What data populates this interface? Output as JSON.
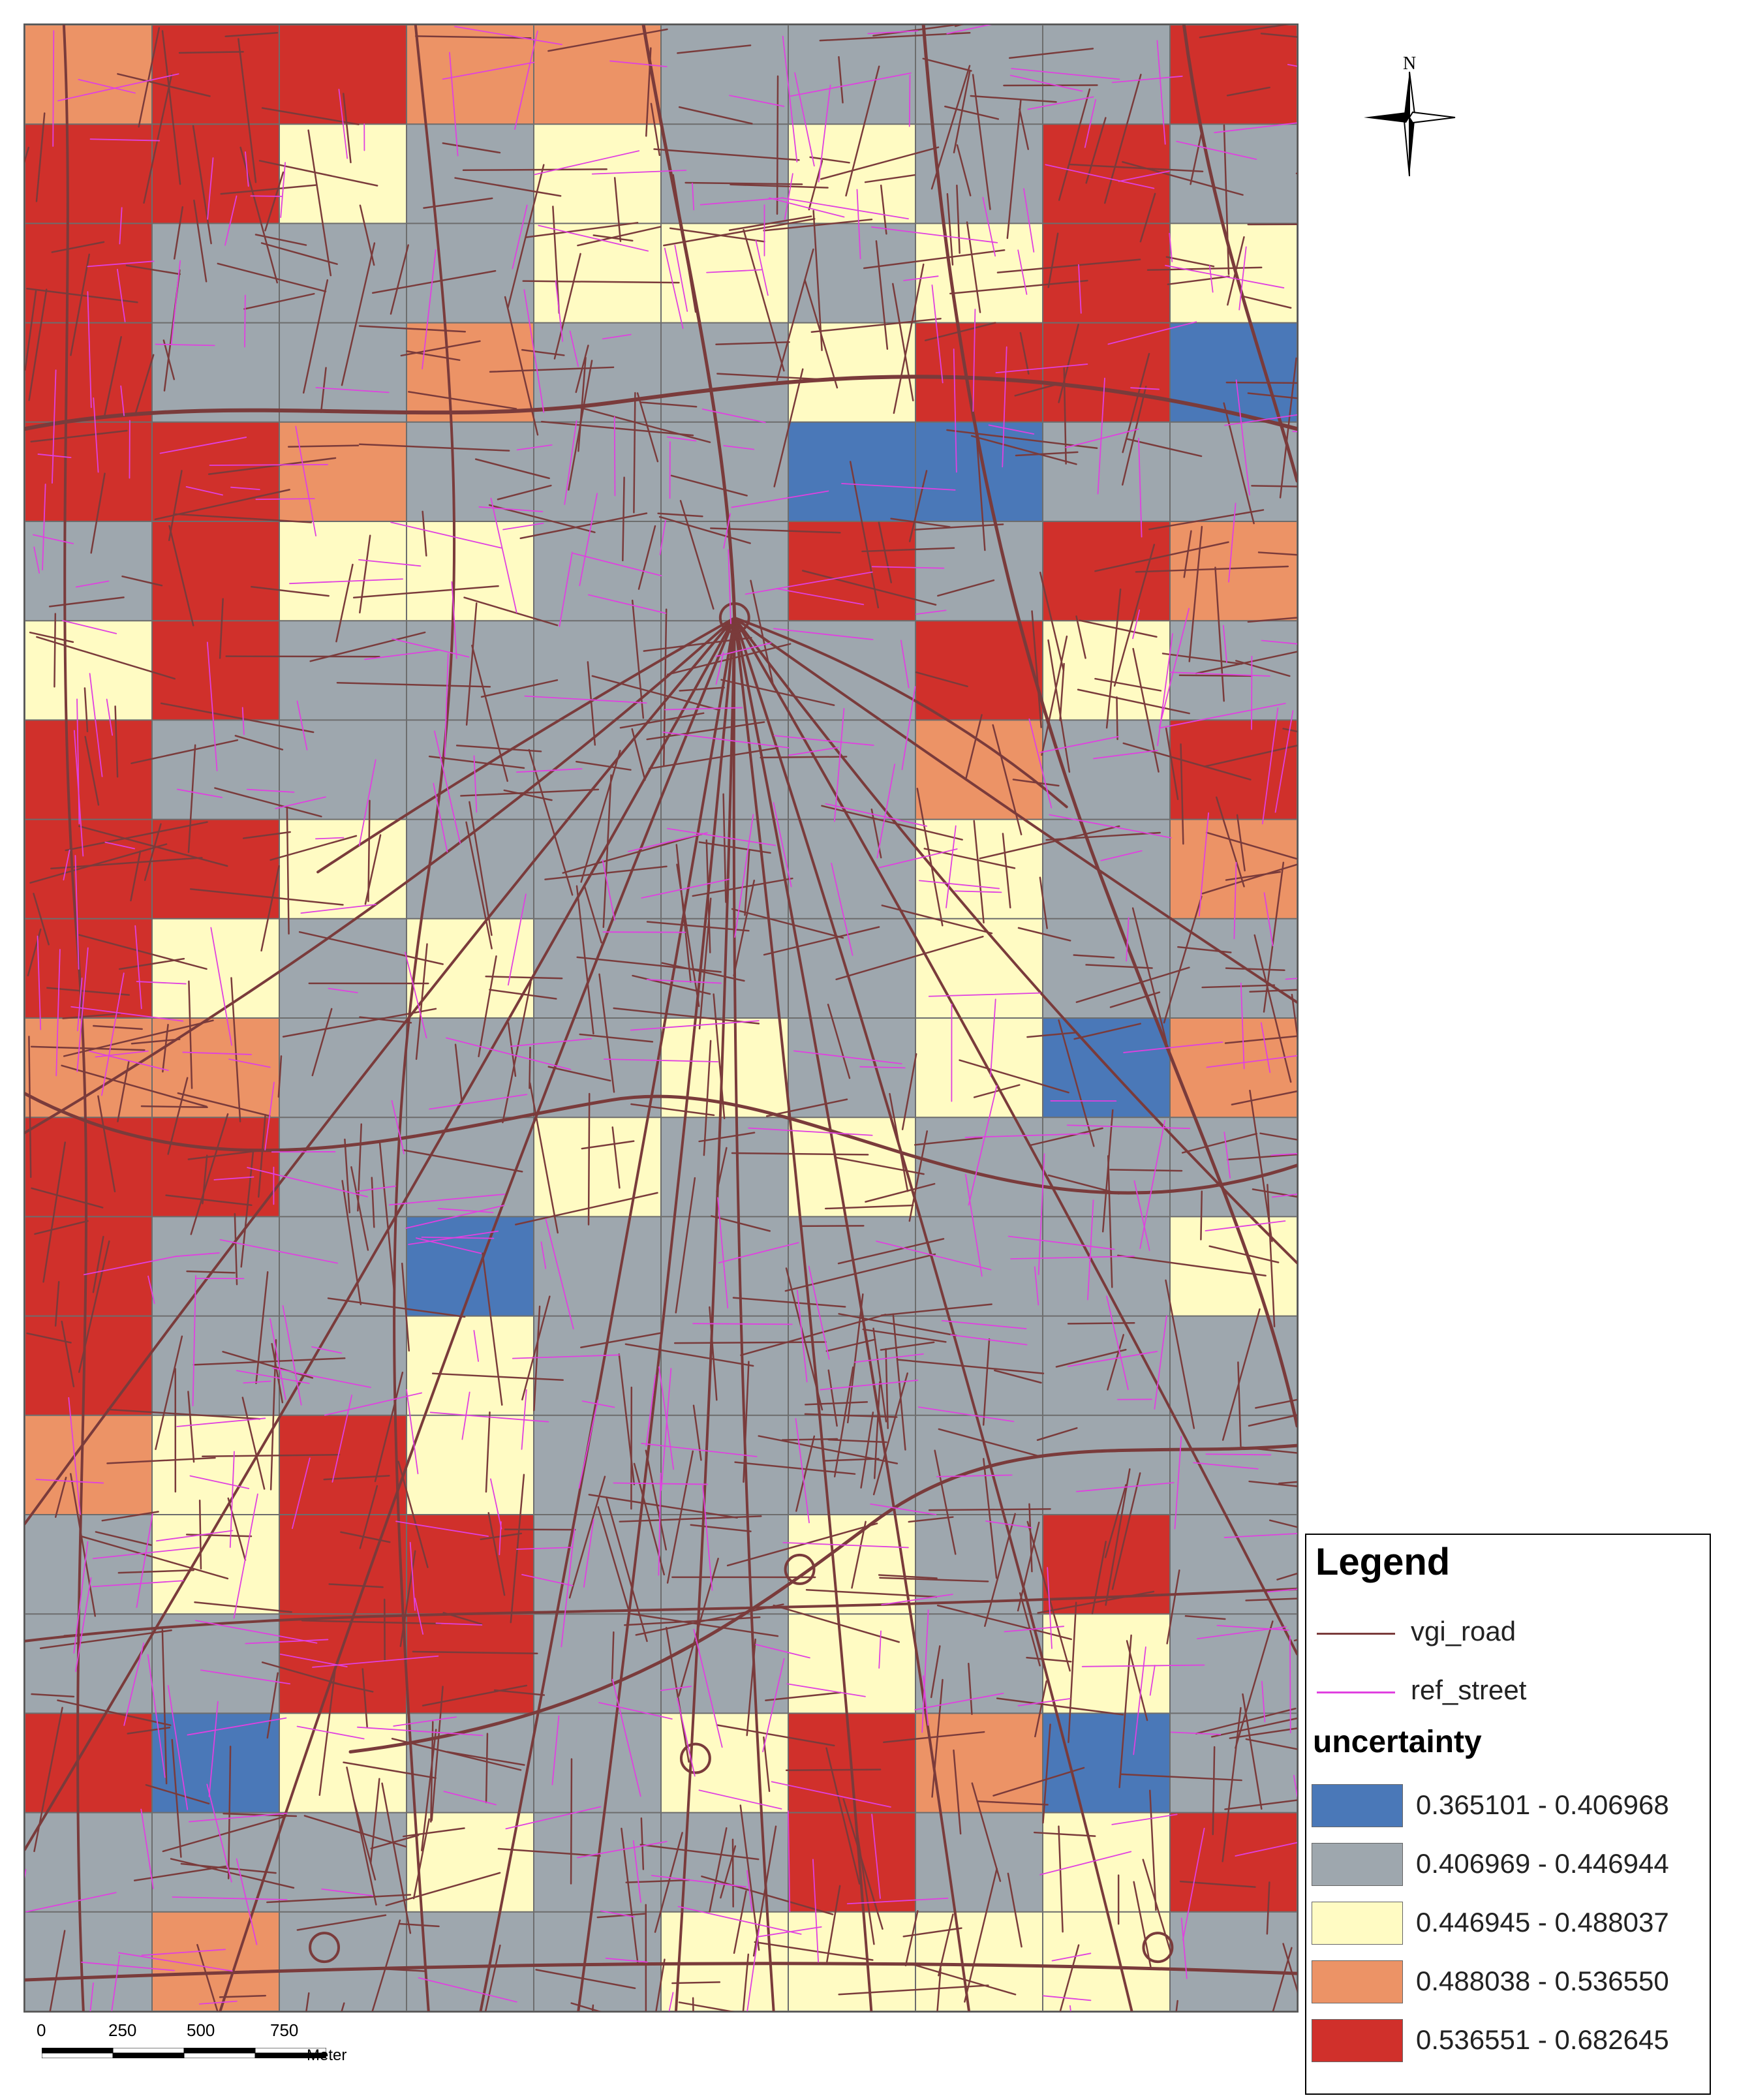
{
  "north_arrow": {
    "label": "N",
    "icon": "north-arrow-icon"
  },
  "legend": {
    "title": "Legend",
    "lines": [
      {
        "label": "vgi_road",
        "color": "#7A3B3B"
      },
      {
        "label": "ref_street",
        "color": "#E040E0"
      }
    ],
    "uncertainty_title": "uncertainty",
    "classes": [
      {
        "label": "0.365101 - 0.406968",
        "color": "#4A78B8"
      },
      {
        "label": "0.406969 - 0.446944",
        "color": "#9EA7AE"
      },
      {
        "label": "0.446945 - 0.488037",
        "color": "#FFFBC3"
      },
      {
        "label": "0.488038 - 0.536550",
        "color": "#EC9366"
      },
      {
        "label": "0.536551 - 0.682645",
        "color": "#D0302B"
      }
    ]
  },
  "scale_bar": {
    "ticks": [
      "0",
      "250",
      "500",
      "750"
    ],
    "unit": "Meter"
  },
  "grid": {
    "cols": 10,
    "rows": 20,
    "class_matrix": [
      [
        3,
        4,
        4,
        3,
        3,
        1,
        1,
        1,
        1,
        4
      ],
      [
        4,
        4,
        2,
        1,
        2,
        1,
        2,
        1,
        4,
        1
      ],
      [
        4,
        1,
        1,
        1,
        2,
        2,
        1,
        2,
        4,
        2
      ],
      [
        4,
        1,
        1,
        3,
        1,
        1,
        2,
        4,
        4,
        0
      ],
      [
        4,
        4,
        3,
        1,
        1,
        1,
        0,
        0,
        1,
        1
      ],
      [
        1,
        4,
        2,
        2,
        1,
        1,
        4,
        1,
        4,
        3
      ],
      [
        2,
        4,
        1,
        1,
        1,
        1,
        1,
        4,
        2,
        1
      ],
      [
        4,
        1,
        1,
        1,
        1,
        1,
        1,
        3,
        1,
        4
      ],
      [
        4,
        4,
        2,
        1,
        1,
        1,
        1,
        2,
        1,
        3
      ],
      [
        4,
        2,
        1,
        2,
        1,
        1,
        1,
        2,
        1,
        1
      ],
      [
        3,
        3,
        1,
        1,
        1,
        2,
        1,
        2,
        0,
        3
      ],
      [
        4,
        4,
        1,
        1,
        2,
        1,
        2,
        1,
        1,
        1
      ],
      [
        4,
        1,
        1,
        0,
        1,
        1,
        1,
        1,
        1,
        2
      ],
      [
        4,
        1,
        1,
        2,
        1,
        1,
        1,
        1,
        1,
        1
      ],
      [
        3,
        2,
        4,
        2,
        1,
        1,
        1,
        1,
        1,
        1
      ],
      [
        1,
        2,
        4,
        4,
        1,
        1,
        2,
        1,
        4,
        1
      ],
      [
        1,
        1,
        4,
        4,
        1,
        1,
        2,
        1,
        2,
        1
      ],
      [
        4,
        0,
        2,
        1,
        1,
        2,
        4,
        3,
        0,
        1
      ],
      [
        1,
        1,
        1,
        2,
        1,
        1,
        4,
        1,
        2,
        4
      ],
      [
        1,
        3,
        1,
        1,
        1,
        2,
        2,
        2,
        2,
        1
      ]
    ]
  }
}
